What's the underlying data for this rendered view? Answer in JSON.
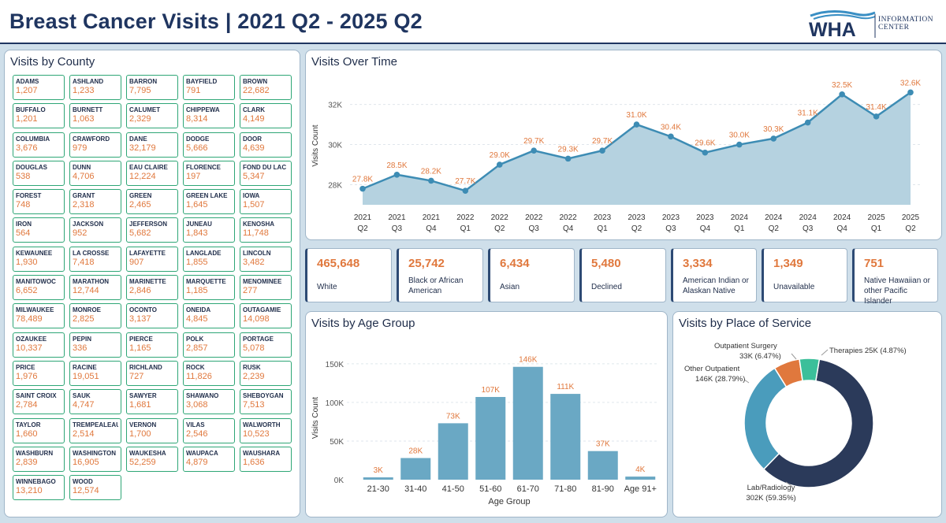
{
  "header": {
    "title": "Breast Cancer Visits | 2021 Q2 - 2025 Q2",
    "logo_main": "WHA",
    "logo_line1": "INFORMATION",
    "logo_line2": "CENTER"
  },
  "county_panel": {
    "title": "Visits by County",
    "counties": [
      {
        "name": "ADAMS",
        "value": "1,207"
      },
      {
        "name": "ASHLAND",
        "value": "1,233"
      },
      {
        "name": "BARRON",
        "value": "7,795"
      },
      {
        "name": "BAYFIELD",
        "value": "791"
      },
      {
        "name": "BROWN",
        "value": "22,682"
      },
      {
        "name": "BUFFALO",
        "value": "1,201"
      },
      {
        "name": "BURNETT",
        "value": "1,063"
      },
      {
        "name": "CALUMET",
        "value": "2,329"
      },
      {
        "name": "CHIPPEWA",
        "value": "8,314"
      },
      {
        "name": "CLARK",
        "value": "4,149"
      },
      {
        "name": "COLUMBIA",
        "value": "3,676"
      },
      {
        "name": "CRAWFORD",
        "value": "979"
      },
      {
        "name": "DANE",
        "value": "32,179"
      },
      {
        "name": "DODGE",
        "value": "5,666"
      },
      {
        "name": "DOOR",
        "value": "4,639"
      },
      {
        "name": "DOUGLAS",
        "value": "538"
      },
      {
        "name": "DUNN",
        "value": "4,706"
      },
      {
        "name": "EAU CLAIRE",
        "value": "12,224"
      },
      {
        "name": "FLORENCE",
        "value": "197"
      },
      {
        "name": "FOND DU LAC",
        "value": "5,347"
      },
      {
        "name": "FOREST",
        "value": "748"
      },
      {
        "name": "GRANT",
        "value": "2,318"
      },
      {
        "name": "GREEN",
        "value": "2,465"
      },
      {
        "name": "GREEN LAKE",
        "value": "1,645"
      },
      {
        "name": "IOWA",
        "value": "1,507"
      },
      {
        "name": "IRON",
        "value": "564"
      },
      {
        "name": "JACKSON",
        "value": "952"
      },
      {
        "name": "JEFFERSON",
        "value": "5,682"
      },
      {
        "name": "JUNEAU",
        "value": "1,843"
      },
      {
        "name": "KENOSHA",
        "value": "11,748"
      },
      {
        "name": "KEWAUNEE",
        "value": "1,930"
      },
      {
        "name": "LA CROSSE",
        "value": "7,418"
      },
      {
        "name": "LAFAYETTE",
        "value": "907"
      },
      {
        "name": "LANGLADE",
        "value": "1,855"
      },
      {
        "name": "LINCOLN",
        "value": "3,482"
      },
      {
        "name": "MANITOWOC",
        "value": "6,652"
      },
      {
        "name": "MARATHON",
        "value": "12,744"
      },
      {
        "name": "MARINETTE",
        "value": "2,846"
      },
      {
        "name": "MARQUETTE",
        "value": "1,185"
      },
      {
        "name": "MENOMINEE",
        "value": "277"
      },
      {
        "name": "MILWAUKEE",
        "value": "78,489"
      },
      {
        "name": "MONROE",
        "value": "2,825"
      },
      {
        "name": "OCONTO",
        "value": "3,137"
      },
      {
        "name": "ONEIDA",
        "value": "4,845"
      },
      {
        "name": "OUTAGAMIE",
        "value": "14,098"
      },
      {
        "name": "OZAUKEE",
        "value": "10,337"
      },
      {
        "name": "PEPIN",
        "value": "336"
      },
      {
        "name": "PIERCE",
        "value": "1,165"
      },
      {
        "name": "POLK",
        "value": "2,857"
      },
      {
        "name": "PORTAGE",
        "value": "5,078"
      },
      {
        "name": "PRICE",
        "value": "1,976"
      },
      {
        "name": "RACINE",
        "value": "19,051"
      },
      {
        "name": "RICHLAND",
        "value": "727"
      },
      {
        "name": "ROCK",
        "value": "11,826"
      },
      {
        "name": "RUSK",
        "value": "2,239"
      },
      {
        "name": "SAINT CROIX",
        "value": "2,784"
      },
      {
        "name": "SAUK",
        "value": "4,747"
      },
      {
        "name": "SAWYER",
        "value": "1,681"
      },
      {
        "name": "SHAWANO",
        "value": "3,068"
      },
      {
        "name": "SHEBOYGAN",
        "value": "7,513"
      },
      {
        "name": "TAYLOR",
        "value": "1,660"
      },
      {
        "name": "TREMPEALEAU",
        "value": "2,514"
      },
      {
        "name": "VERNON",
        "value": "1,700"
      },
      {
        "name": "VILAS",
        "value": "2,546"
      },
      {
        "name": "WALWORTH",
        "value": "10,523"
      },
      {
        "name": "WASHBURN",
        "value": "2,839"
      },
      {
        "name": "WASHINGTON",
        "value": "16,905"
      },
      {
        "name": "WAUKESHA",
        "value": "52,259"
      },
      {
        "name": "WAUPACA",
        "value": "4,879"
      },
      {
        "name": "WAUSHARA",
        "value": "1,636"
      },
      {
        "name": "WINNEBAGO",
        "value": "13,210"
      },
      {
        "name": "WOOD",
        "value": "12,574"
      }
    ]
  },
  "race_cards": [
    {
      "value": "465,648",
      "label": "White"
    },
    {
      "value": "25,742",
      "label": "Black or African American"
    },
    {
      "value": "6,434",
      "label": "Asian"
    },
    {
      "value": "5,480",
      "label": "Declined"
    },
    {
      "value": "3,334",
      "label": "American Indian or Alaskan Native"
    },
    {
      "value": "1,349",
      "label": "Unavailable"
    },
    {
      "value": "751",
      "label": "Native Hawaiian or other Pacific Islander"
    }
  ],
  "colors": {
    "accent_orange": "#e0783d",
    "area_fill": "#b5d2e0",
    "line": "#3d8cb4",
    "bar": "#6aa8c4",
    "navy": "#2b3a5a",
    "teal_donut": "#4a9cbc",
    "green_border": "#2ea676",
    "therapies": "#3bbf9a"
  },
  "chart_data": [
    {
      "type": "area",
      "title": "Visits Over Time",
      "ylabel": "Visits Count",
      "ylim": [
        27000,
        33200
      ],
      "yticks": [
        28000,
        30000,
        32000
      ],
      "ytick_labels": [
        "28K",
        "30K",
        "32K"
      ],
      "categories": [
        [
          "2021",
          "Q2"
        ],
        [
          "2021",
          "Q3"
        ],
        [
          "2021",
          "Q4"
        ],
        [
          "2022",
          "Q1"
        ],
        [
          "2022",
          "Q2"
        ],
        [
          "2022",
          "Q3"
        ],
        [
          "2022",
          "Q4"
        ],
        [
          "2023",
          "Q1"
        ],
        [
          "2023",
          "Q2"
        ],
        [
          "2023",
          "Q3"
        ],
        [
          "2023",
          "Q4"
        ],
        [
          "2024",
          "Q1"
        ],
        [
          "2024",
          "Q2"
        ],
        [
          "2024",
          "Q3"
        ],
        [
          "2024",
          "Q4"
        ],
        [
          "2025",
          "Q1"
        ],
        [
          "2025",
          "Q2"
        ]
      ],
      "values": [
        27800,
        28500,
        28200,
        27700,
        29000,
        29700,
        29300,
        29700,
        31000,
        30400,
        29600,
        30000,
        30300,
        31100,
        32500,
        31400,
        32600
      ],
      "labels": [
        "27.8K",
        "28.5K",
        "28.2K",
        "27.7K",
        "29.0K",
        "29.7K",
        "29.3K",
        "29.7K",
        "31.0K",
        "30.4K",
        "29.6K",
        "30.0K",
        "30.3K",
        "31.1K",
        "32.5K",
        "31.4K",
        "32.6K"
      ]
    },
    {
      "type": "bar",
      "title": "Visits by Age Group",
      "xlabel": "Age Group",
      "ylabel": "Visits Count",
      "ylim": [
        0,
        160000
      ],
      "yticks": [
        0,
        50000,
        100000,
        150000
      ],
      "ytick_labels": [
        "0K",
        "50K",
        "100K",
        "150K"
      ],
      "categories": [
        "21-30",
        "31-40",
        "41-50",
        "51-60",
        "61-70",
        "71-80",
        "81-90",
        "Age 91+"
      ],
      "values": [
        3000,
        28000,
        73000,
        107000,
        146000,
        111000,
        37000,
        4000
      ],
      "labels": [
        "3K",
        "28K",
        "73K",
        "107K",
        "146K",
        "111K",
        "37K",
        "4K"
      ]
    },
    {
      "type": "pie",
      "title": "Visits by Place of Service",
      "slices": [
        {
          "name": "Lab/Radiology",
          "value": 302000,
          "pct": 59.35,
          "label_name": "Lab/Radiology",
          "label_value": "302K (59.35%)"
        },
        {
          "name": "Other Outpatient",
          "value": 146000,
          "pct": 28.79,
          "label_name": "Other Outpatient",
          "label_value": "146K (28.79%)"
        },
        {
          "name": "Outpatient Surgery",
          "value": 33000,
          "pct": 6.47,
          "label_name": "Outpatient Surgery",
          "label_value": "33K (6.47%)"
        },
        {
          "name": "Therapies",
          "value": 25000,
          "pct": 4.87,
          "label_name": "Therapies 25K (4.87%)",
          "label_value": ""
        }
      ]
    }
  ]
}
